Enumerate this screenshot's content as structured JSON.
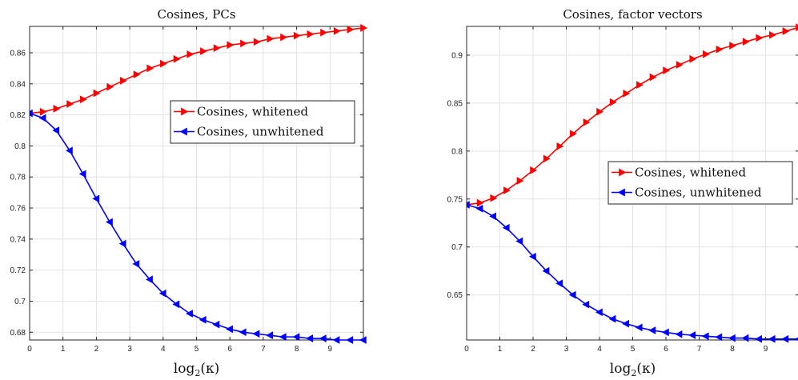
{
  "chart_data": [
    {
      "type": "line",
      "title": "Cosines, PCs",
      "xlabel": "log2(κ)",
      "xlabel_parts": {
        "main": "log",
        "sub": "2",
        "arg": "(κ)"
      },
      "ylabel": "",
      "xlim": [
        0,
        10
      ],
      "ylim": [
        0.675,
        0.877
      ],
      "xticks": [
        0,
        1,
        2,
        3,
        4,
        5,
        6,
        7,
        8,
        9
      ],
      "yticks": [
        0.68,
        0.7,
        0.72,
        0.74,
        0.76,
        0.78,
        0.8,
        0.82,
        0.84,
        0.86
      ],
      "ytick_labels": [
        "0.68",
        "0.7",
        "0.72",
        "0.74",
        "0.76",
        "0.78",
        "0.8",
        "0.82",
        "0.84",
        "0.86"
      ],
      "grid": true,
      "legend_position": "right",
      "x": [
        0,
        0.4,
        0.8,
        1.2,
        1.6,
        2.0,
        2.4,
        2.8,
        3.2,
        3.6,
        4.0,
        4.4,
        4.8,
        5.2,
        5.6,
        6.0,
        6.4,
        6.8,
        7.2,
        7.6,
        8.0,
        8.4,
        8.8,
        9.2,
        9.6,
        10.0
      ],
      "series": [
        {
          "name": "Cosines, whitened",
          "color": "#ff0000",
          "marker": "triangle-right",
          "values": [
            0.821,
            0.822,
            0.824,
            0.827,
            0.83,
            0.834,
            0.838,
            0.842,
            0.846,
            0.85,
            0.853,
            0.856,
            0.859,
            0.861,
            0.863,
            0.865,
            0.866,
            0.867,
            0.869,
            0.87,
            0.871,
            0.872,
            0.873,
            0.874,
            0.875,
            0.876
          ]
        },
        {
          "name": "Cosines, unwhitened",
          "color": "#0000ff",
          "marker": "triangle-left",
          "values": [
            0.821,
            0.818,
            0.81,
            0.797,
            0.782,
            0.766,
            0.751,
            0.737,
            0.724,
            0.714,
            0.705,
            0.698,
            0.692,
            0.688,
            0.685,
            0.682,
            0.68,
            0.679,
            0.678,
            0.677,
            0.677,
            0.676,
            0.676,
            0.675,
            0.675,
            0.675
          ]
        }
      ]
    },
    {
      "type": "line",
      "title": "Cosines, factor vectors",
      "xlabel": "log2(κ)",
      "xlabel_parts": {
        "main": "log",
        "sub": "2",
        "arg": "(κ)"
      },
      "ylabel": "",
      "xlim": [
        0,
        10
      ],
      "ylim": [
        0.603,
        0.93
      ],
      "xticks": [
        0,
        1,
        2,
        3,
        4,
        5,
        6,
        7,
        8,
        9
      ],
      "yticks": [
        0.65,
        0.7,
        0.75,
        0.8,
        0.85,
        0.9
      ],
      "ytick_labels": [
        "0.65",
        "0.7",
        "0.75",
        "0.8",
        "0.85",
        "0.9"
      ],
      "grid": true,
      "legend_position": "right",
      "x": [
        0,
        0.4,
        0.8,
        1.2,
        1.6,
        2.0,
        2.4,
        2.8,
        3.2,
        3.6,
        4.0,
        4.4,
        4.8,
        5.2,
        5.6,
        6.0,
        6.4,
        6.8,
        7.2,
        7.6,
        8.0,
        8.4,
        8.8,
        9.2,
        9.6,
        10.0
      ],
      "series": [
        {
          "name": "Cosines, whitened",
          "color": "#ff0000",
          "marker": "triangle-right",
          "values": [
            0.744,
            0.746,
            0.751,
            0.759,
            0.769,
            0.78,
            0.792,
            0.805,
            0.818,
            0.83,
            0.841,
            0.851,
            0.86,
            0.869,
            0.877,
            0.884,
            0.89,
            0.896,
            0.901,
            0.906,
            0.91,
            0.914,
            0.918,
            0.921,
            0.925,
            0.929
          ]
        },
        {
          "name": "Cosines, unwhitened",
          "color": "#0000ff",
          "marker": "triangle-left",
          "values": [
            0.744,
            0.74,
            0.732,
            0.72,
            0.706,
            0.69,
            0.675,
            0.662,
            0.65,
            0.64,
            0.632,
            0.625,
            0.62,
            0.616,
            0.613,
            0.611,
            0.609,
            0.608,
            0.607,
            0.606,
            0.605,
            0.605,
            0.604,
            0.604,
            0.604,
            0.604
          ]
        }
      ]
    }
  ]
}
